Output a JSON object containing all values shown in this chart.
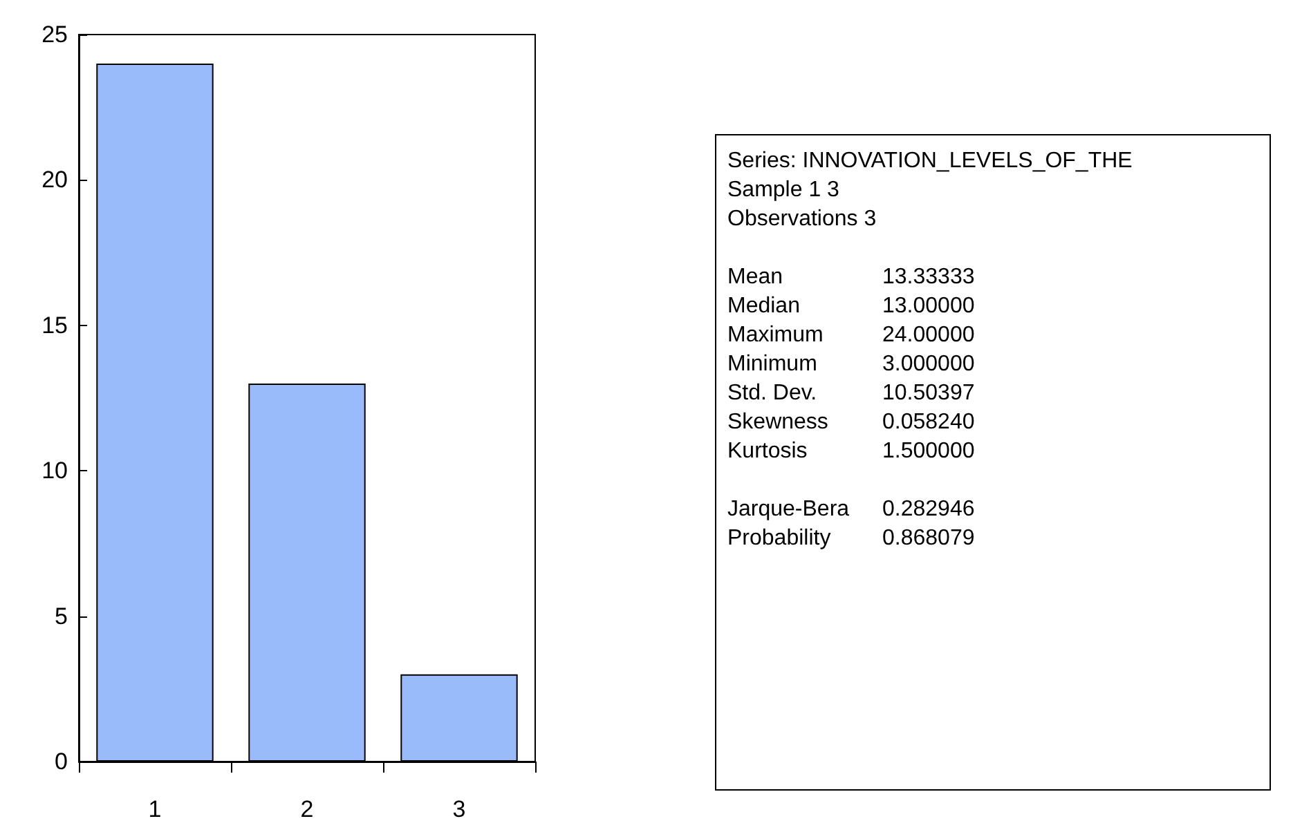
{
  "chart_data": {
    "type": "bar",
    "categories": [
      "1",
      "2",
      "3"
    ],
    "values": [
      24,
      13,
      3
    ],
    "color": "#99bbfa",
    "ylim": [
      0,
      25
    ],
    "yticks": [
      0,
      5,
      10,
      15,
      20,
      25
    ],
    "grid": false,
    "annotations": [
      "Series: INNOVATION_LEVELS_OF_THE",
      "Sample 1 3",
      "Observations 3",
      "Mean",
      "13.33333",
      "Median",
      "13.00000",
      "Maximum",
      "24.00000",
      "Minimum",
      "3.000000",
      "Std. Dev.",
      "10.50397",
      "Skewness",
      "0.058240",
      "Kurtosis",
      "1.500000",
      "Jarque-Bera",
      "0.282946",
      "Probability",
      "0.868079"
    ]
  }
}
